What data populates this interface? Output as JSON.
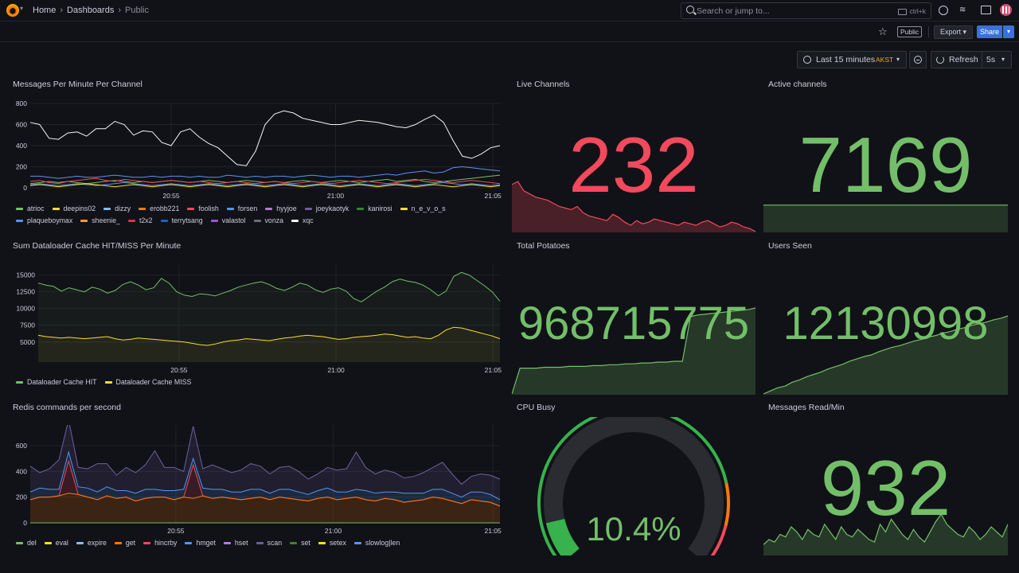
{
  "breadcrumb": {
    "home": "Home",
    "dashboards": "Dashboards",
    "current": "Public"
  },
  "search": {
    "placeholder": "Search or jump to...",
    "shortcut": "ctrl+k"
  },
  "toolbar": {
    "public_badge": "Public",
    "export_label": "Export",
    "share_label": "Share"
  },
  "time": {
    "range": "Last 15 minutes",
    "timezone": "AKST",
    "refresh_label": "Refresh",
    "interval": "5s"
  },
  "colors": {
    "green": "#73bf69",
    "red": "#f2495c",
    "yellow": "#fade2a",
    "blue": "#5794f2",
    "orange": "#ff780a",
    "purple": "#b877d9",
    "bg": "#111217"
  },
  "panels": {
    "messages": {
      "title": "Messages Per Minute Per Channel",
      "legend": [
        {
          "name": "atrioc",
          "color": "#73bf69"
        },
        {
          "name": "deepins02",
          "color": "#fade2a"
        },
        {
          "name": "dizzy",
          "color": "#8ab8ff"
        },
        {
          "name": "erobb221",
          "color": "#ff780a"
        },
        {
          "name": "foolish",
          "color": "#f2495c"
        },
        {
          "name": "forsen",
          "color": "#5794f2"
        },
        {
          "name": "hyyjoe",
          "color": "#b877d9"
        },
        {
          "name": "joeykaotyk",
          "color": "#705da0"
        },
        {
          "name": "kanirosi",
          "color": "#37872d"
        },
        {
          "name": "n_e_v_o_s",
          "color": "#fade2a"
        },
        {
          "name": "plaqueboymax",
          "color": "#5794f2"
        },
        {
          "name": "sheenie_",
          "color": "#ff9830"
        },
        {
          "name": "t2x2",
          "color": "#e02f44"
        },
        {
          "name": "terrytsang",
          "color": "#1f60c4"
        },
        {
          "name": "valastol",
          "color": "#a352cc"
        },
        {
          "name": "vonza",
          "color": "#6e6e78"
        },
        {
          "name": "xqc",
          "color": "#f5f5f5"
        }
      ]
    },
    "live_channels": {
      "title": "Live Channels",
      "value": "232"
    },
    "active_channels": {
      "title": "Active channels",
      "value": "7169"
    },
    "dataloader": {
      "title": "Sum Dataloader Cache HIT/MISS Per Minute",
      "legend": [
        {
          "name": "Dataloader Cache HIT",
          "color": "#73bf69"
        },
        {
          "name": "Dataloader Cache MISS",
          "color": "#fade2a"
        }
      ]
    },
    "potatoes": {
      "title": "Total Potatoes",
      "value": "968715775"
    },
    "users_seen": {
      "title": "Users Seen",
      "value": "12130998"
    },
    "redis": {
      "title": "Redis commands per second",
      "legend": [
        {
          "name": "del",
          "color": "#73bf69"
        },
        {
          "name": "eval",
          "color": "#fade2a"
        },
        {
          "name": "expire",
          "color": "#8ab8ff"
        },
        {
          "name": "get",
          "color": "#ff780a"
        },
        {
          "name": "hincrby",
          "color": "#f2495c"
        },
        {
          "name": "hmget",
          "color": "#5794f2"
        },
        {
          "name": "hset",
          "color": "#b877d9"
        },
        {
          "name": "scan",
          "color": "#705da0"
        },
        {
          "name": "set",
          "color": "#37872d"
        },
        {
          "name": "setex",
          "color": "#fade2a"
        },
        {
          "name": "slowlog|len",
          "color": "#5794f2"
        }
      ]
    },
    "cpu": {
      "title": "CPU Busy",
      "value": "10.4%",
      "percent": 10.4
    },
    "messages_read": {
      "title": "Messages Read/Min",
      "value": "932"
    }
  },
  "chart_data": [
    {
      "type": "line",
      "title": "Messages Per Minute Per Channel",
      "x_ticks": [
        "20:55",
        "21:00",
        "21:05"
      ],
      "y_ticks": [
        0,
        200,
        400,
        600,
        800
      ],
      "ylim": [
        0,
        800
      ],
      "series": [
        {
          "name": "xqc",
          "values": [
            620,
            600,
            470,
            460,
            520,
            530,
            490,
            560,
            560,
            630,
            600,
            500,
            540,
            530,
            430,
            400,
            530,
            560,
            480,
            420,
            380,
            300,
            220,
            210,
            350,
            600,
            700,
            730,
            710,
            660,
            640,
            620,
            600,
            600,
            620,
            640,
            630,
            620,
            600,
            580,
            570,
            600,
            650,
            690,
            620,
            450,
            300,
            280,
            320,
            380,
            400
          ]
        },
        {
          "name": "plaqueboymax",
          "values": [
            110,
            110,
            100,
            90,
            100,
            110,
            100,
            100,
            110,
            120,
            110,
            100,
            100,
            110,
            100,
            110,
            110,
            100,
            110,
            100,
            100,
            120,
            110,
            100,
            110,
            100,
            110,
            110,
            100,
            110,
            120,
            110,
            100,
            110,
            110,
            100,
            110,
            120,
            130,
            120,
            140,
            150,
            160,
            140,
            150,
            190,
            200,
            190,
            180,
            170,
            160
          ]
        },
        {
          "name": "atrioc",
          "values": [
            40,
            50,
            60,
            50,
            60,
            50,
            40,
            50,
            60,
            70,
            60,
            50,
            60,
            50,
            60,
            70,
            60,
            50,
            60,
            70,
            60,
            50,
            60,
            70,
            60,
            50,
            60,
            50,
            60,
            70,
            60,
            50,
            60,
            70,
            60,
            50,
            60,
            70,
            80,
            60,
            70,
            80,
            60,
            50,
            60,
            70,
            80,
            90,
            100,
            110,
            120
          ]
        },
        {
          "name": "foolish",
          "values": [
            60,
            70,
            50,
            40,
            60,
            70,
            80,
            90,
            70,
            60,
            80,
            70,
            60,
            50,
            60,
            70,
            60,
            50,
            60,
            50,
            40,
            50,
            60,
            50,
            40,
            50,
            60,
            50,
            40,
            50,
            60,
            50,
            40,
            50,
            60,
            70,
            60,
            50,
            40,
            50,
            60,
            70,
            80,
            70,
            60,
            50,
            60,
            70,
            60,
            50,
            40
          ]
        },
        {
          "name": "forsen",
          "values": [
            30,
            40,
            30,
            20,
            30,
            40,
            30,
            20,
            30,
            40,
            50,
            40,
            30,
            20,
            30,
            40,
            30,
            20,
            30,
            40,
            30,
            20,
            30,
            40,
            30,
            20,
            30,
            40,
            30,
            20,
            30,
            40,
            30,
            20,
            30,
            40,
            30,
            20,
            30,
            40,
            30,
            20,
            30,
            40,
            50,
            40,
            30,
            40,
            30,
            20,
            30
          ]
        },
        {
          "name": "n_e_v_o_s",
          "values": [
            20,
            30,
            20,
            10,
            20,
            30,
            40,
            30,
            20,
            10,
            20,
            30,
            20,
            10,
            20,
            30,
            20,
            10,
            20,
            30,
            20,
            10,
            20,
            30,
            20,
            10,
            20,
            30,
            20,
            10,
            20,
            30,
            20,
            10,
            20,
            30,
            20,
            10,
            20,
            30,
            20,
            10,
            20,
            30,
            20,
            10,
            20,
            30,
            20,
            10,
            20
          ]
        }
      ]
    },
    {
      "type": "line",
      "title": "Sum Dataloader Cache HIT/MISS Per Minute",
      "x_ticks": [
        "20:55",
        "21:00",
        "21:05"
      ],
      "y_ticks": [
        5000,
        7500,
        10000,
        12500,
        15000
      ],
      "ylim": [
        2000,
        16500
      ],
      "series": [
        {
          "name": "Dataloader Cache HIT",
          "values": [
            13800,
            13500,
            13300,
            12600,
            13100,
            12800,
            12500,
            13200,
            12900,
            12300,
            12700,
            13600,
            14000,
            13500,
            12800,
            13100,
            14500,
            13800,
            12500,
            12000,
            11800,
            12200,
            12100,
            11900,
            12300,
            12700,
            13200,
            13500,
            13800,
            14000,
            13600,
            13000,
            12700,
            13200,
            13800,
            13500,
            12800,
            12400,
            12900,
            13100,
            12600,
            11500,
            11000,
            11800,
            12600,
            13200,
            14000,
            14400,
            14100,
            13900,
            13500,
            12800,
            11900,
            12600,
            14800,
            15400,
            15000,
            14200,
            13400,
            12500,
            11100
          ]
        },
        {
          "name": "Dataloader Cache MISS",
          "values": [
            6000,
            5800,
            5700,
            5600,
            5700,
            5600,
            5500,
            5600,
            5700,
            5800,
            5500,
            5300,
            5400,
            5600,
            5500,
            5400,
            5300,
            5200,
            5100,
            5000,
            4800,
            4600,
            4500,
            4700,
            5000,
            5200,
            5300,
            5500,
            5400,
            5300,
            5200,
            5400,
            5600,
            5700,
            5900,
            6000,
            5900,
            5800,
            5600,
            5400,
            5500,
            5700,
            5800,
            5900,
            6000,
            6200,
            6100,
            5900,
            5700,
            5800,
            5600,
            5500,
            6000,
            6800,
            7200,
            7100,
            6800,
            6500,
            6200,
            5900,
            5500
          ]
        }
      ]
    },
    {
      "type": "area",
      "title": "Redis commands per second",
      "x_ticks": [
        "20:55",
        "21:00",
        "21:05"
      ],
      "y_ticks": [
        0,
        200,
        400,
        600
      ],
      "ylim": [
        0,
        760
      ],
      "series": [
        {
          "name": "get",
          "values": [
            180,
            200,
            200,
            210,
            230,
            220,
            200,
            180,
            210,
            190,
            200,
            170,
            190,
            200,
            200,
            180,
            200,
            190,
            210,
            190,
            200,
            190,
            180,
            190,
            200,
            180,
            200,
            190,
            180,
            170,
            190,
            200,
            180,
            190,
            200,
            180,
            170,
            190,
            180,
            160,
            170,
            180,
            200,
            190,
            170,
            150,
            180,
            170,
            160,
            130
          ]
        },
        {
          "name": "hincrby",
          "values": [
            0,
            0,
            0,
            0,
            250,
            0,
            0,
            0,
            0,
            0,
            0,
            0,
            0,
            0,
            0,
            0,
            0,
            260,
            0,
            0,
            0,
            0,
            0,
            0,
            0,
            0,
            0,
            0,
            0,
            0,
            0,
            0,
            0,
            0,
            0,
            0,
            0,
            0,
            0,
            0,
            0,
            0,
            0,
            0,
            0,
            0,
            0,
            0,
            0,
            0
          ]
        },
        {
          "name": "hmget",
          "values": [
            60,
            70,
            60,
            50,
            70,
            60,
            70,
            60,
            70,
            60,
            50,
            60,
            70,
            60,
            50,
            70,
            60,
            50,
            60,
            70,
            60,
            50,
            60,
            70,
            60,
            50,
            60,
            70,
            60,
            50,
            60,
            70,
            60,
            50,
            60,
            70,
            60,
            50,
            60,
            70,
            60,
            50,
            60,
            70,
            60,
            50,
            60,
            70,
            60,
            50
          ]
        },
        {
          "name": "scan",
          "values": [
            200,
            120,
            160,
            230,
            250,
            150,
            150,
            220,
            180,
            120,
            180,
            160,
            190,
            300,
            180,
            180,
            140,
            250,
            150,
            190,
            160,
            150,
            170,
            200,
            180,
            150,
            170,
            180,
            160,
            120,
            130,
            160,
            170,
            180,
            290,
            180,
            150,
            170,
            150,
            120,
            130,
            160,
            170,
            210,
            150,
            100,
            120,
            140,
            150,
            160
          ]
        }
      ]
    },
    {
      "type": "area",
      "title": "Live Channels",
      "sparkline": [
        300,
        320,
        260,
        240,
        220,
        210,
        200,
        180,
        160,
        150,
        140,
        160,
        120,
        100,
        90,
        80,
        70,
        110,
        90,
        60,
        40,
        70,
        50,
        60,
        80,
        70,
        60,
        50,
        40,
        60,
        50,
        40,
        60,
        70,
        50,
        30,
        40,
        60,
        50,
        30,
        20,
        0
      ]
    },
    {
      "type": "area",
      "title": "Active channels",
      "sparkline": [
        7169,
        7169,
        7169,
        7169,
        7169,
        7169,
        7169,
        7169,
        7169,
        7169
      ]
    },
    {
      "type": "area",
      "title": "Total Potatoes",
      "sparkline": [
        0,
        30,
        30,
        30,
        31,
        31,
        31,
        32,
        32,
        32,
        33,
        33,
        34,
        34,
        35,
        35,
        36,
        36,
        37,
        37,
        38,
        38,
        90,
        92,
        93,
        94,
        95,
        96,
        97,
        98,
        100
      ]
    },
    {
      "type": "area",
      "title": "Users Seen",
      "sparkline": [
        0,
        4,
        8,
        10,
        15,
        18,
        22,
        25,
        28,
        32,
        35,
        38,
        42,
        45,
        48,
        50,
        54,
        57,
        60,
        62,
        65,
        68,
        70,
        73,
        75,
        78,
        80,
        83,
        85,
        88,
        90,
        92,
        95,
        97,
        100
      ]
    },
    {
      "type": "area",
      "title": "Messages Read/Min",
      "sparkline": [
        20,
        30,
        25,
        40,
        35,
        55,
        45,
        30,
        50,
        40,
        35,
        60,
        45,
        30,
        55,
        40,
        35,
        50,
        40,
        30,
        25,
        60,
        45,
        70,
        55,
        40,
        30,
        50,
        35,
        25,
        45,
        65,
        80,
        60,
        50,
        40,
        35,
        55,
        45,
        30,
        40,
        55,
        45,
        35,
        60
      ]
    },
    {
      "type": "gauge",
      "title": "CPU Busy",
      "value": 10.4,
      "min": 0,
      "max": 100
    }
  ]
}
